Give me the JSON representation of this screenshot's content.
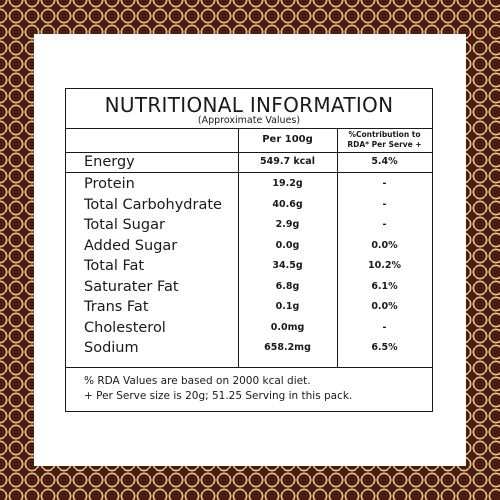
{
  "title": "NUTRITIONAL INFORMATION",
  "subtitle": "(Approximate Values)",
  "columns": {
    "per100": "Per 100g",
    "rda_line1": "%Contribution to",
    "rda_line2": "RDA* Per Serve +"
  },
  "rows": [
    {
      "name": "Energy",
      "per100": "549.7 kcal",
      "rda": "5.4%"
    },
    {
      "name": "Protein",
      "per100": "19.2g",
      "rda": "-"
    },
    {
      "name": "Total Carbohydrate",
      "per100": "40.6g",
      "rda": "-"
    },
    {
      "name": "Total Sugar",
      "per100": "2.9g",
      "rda": "-"
    },
    {
      "name": "Added Sugar",
      "per100": "0.0g",
      "rda": "0.0%"
    },
    {
      "name": "Total Fat",
      "per100": "34.5g",
      "rda": "10.2%"
    },
    {
      "name": "Saturater Fat",
      "per100": "6.8g",
      "rda": "6.1%"
    },
    {
      "name": "Trans Fat",
      "per100": "0.1g",
      "rda": "0.0%"
    },
    {
      "name": "Cholesterol",
      "per100": "0.0mg",
      "rda": "-"
    },
    {
      "name": "Sodium",
      "per100": "658.2mg",
      "rda": "6.5%"
    }
  ],
  "footnotes": [
    "% RDA Values are based on 2000 kcal diet.",
    "+ Per Serve size is 20g; 51.25 Serving in this pack."
  ],
  "colors": {
    "border_brown": "#4a1d12",
    "border_gold": "#e9c98c"
  }
}
